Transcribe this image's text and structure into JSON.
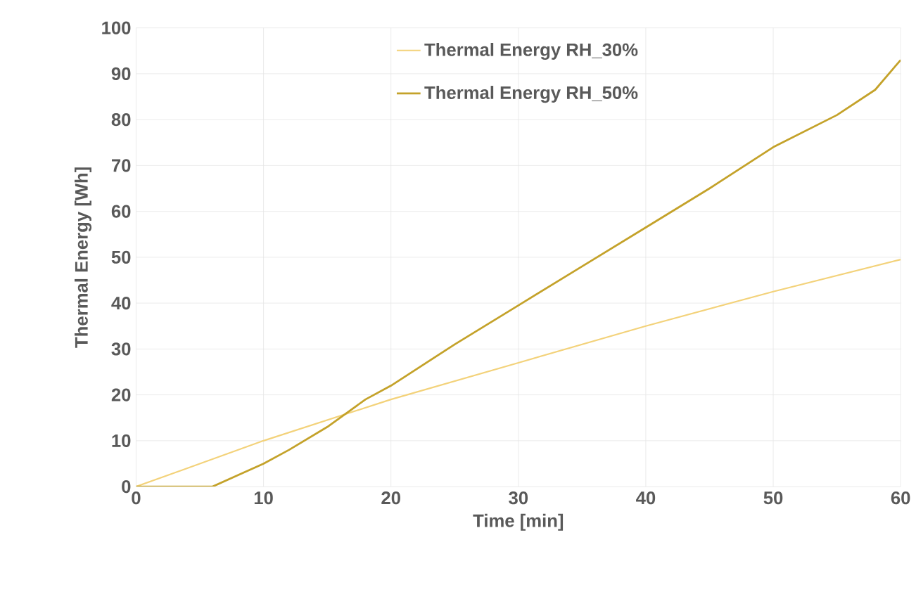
{
  "chart_data": {
    "type": "line",
    "xlabel": "Time [min]",
    "ylabel": "Thermal Energy [Wh]",
    "xlim": [
      0,
      60
    ],
    "ylim": [
      0,
      100
    ],
    "xticks": [
      0,
      10,
      20,
      30,
      40,
      50,
      60
    ],
    "yticks": [
      0,
      10,
      20,
      30,
      40,
      50,
      60,
      70,
      80,
      90,
      100
    ],
    "grid": true,
    "legend": "top",
    "marker": "none",
    "line_style": "solid",
    "series": [
      {
        "name": "Thermal Energy RH_30%",
        "color": "#f3d27a",
        "x": [
          0,
          10,
          20,
          30,
          40,
          50,
          60
        ],
        "values": [
          0,
          10,
          19,
          27,
          35,
          42.5,
          49.5
        ]
      },
      {
        "name": "Thermal Energy RH_50%",
        "color": "#c4a22a",
        "x": [
          0,
          3,
          6,
          8,
          10,
          12,
          15,
          18,
          20,
          25,
          30,
          35,
          40,
          45,
          50,
          55,
          58,
          60
        ],
        "values": [
          0,
          0,
          0,
          2.5,
          5,
          8,
          13,
          19,
          22,
          31,
          39.5,
          48,
          56.5,
          65,
          74,
          81,
          86.5,
          93
        ]
      }
    ]
  }
}
